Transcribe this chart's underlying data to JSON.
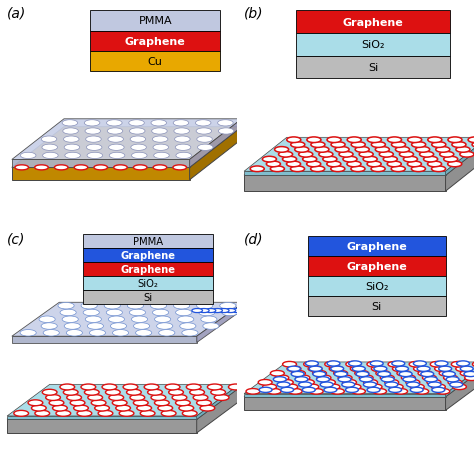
{
  "fig_width": 4.74,
  "fig_height": 4.52,
  "dpi": 100,
  "bg_color": "#ffffff",
  "label_fontsize": 10,
  "layer_label_fontsize": 8,
  "colors": {
    "pmma": "#c0c8e0",
    "graphene_red": "#dd1111",
    "graphene_blue": "#2255dd",
    "cu": "#e8a800",
    "sio2": "#aadde8",
    "si": "#bbbbbb",
    "sio2_side": "#80bece",
    "si_side": "#999999",
    "cu_side": "#c08800",
    "pmma_side": "#9098b8"
  },
  "stack_a": [
    {
      "label": "PMMA",
      "color": "#c0c8e0",
      "text_color": "black",
      "bold": false
    },
    {
      "label": "Graphene",
      "color": "#dd1111",
      "text_color": "white",
      "bold": true
    },
    {
      "label": "Cu",
      "color": "#e8a800",
      "text_color": "black",
      "bold": false
    }
  ],
  "stack_b": [
    {
      "label": "Graphene",
      "color": "#dd1111",
      "text_color": "white",
      "bold": true
    },
    {
      "label": "SiO₂",
      "color": "#aadde8",
      "text_color": "black",
      "bold": false
    },
    {
      "label": "Si",
      "color": "#bbbbbb",
      "text_color": "black",
      "bold": false
    }
  ],
  "stack_c": [
    {
      "label": "PMMA",
      "color": "#c0c8e0",
      "text_color": "black",
      "bold": false
    },
    {
      "label": "Graphene",
      "color": "#2255dd",
      "text_color": "white",
      "bold": true
    },
    {
      "label": "Graphene",
      "color": "#dd1111",
      "text_color": "white",
      "bold": true
    },
    {
      "label": "SiO₂",
      "color": "#aadde8",
      "text_color": "black",
      "bold": false
    },
    {
      "label": "Si",
      "color": "#bbbbbb",
      "text_color": "black",
      "bold": false
    }
  ],
  "stack_d": [
    {
      "label": "Graphene",
      "color": "#2255dd",
      "text_color": "white",
      "bold": true
    },
    {
      "label": "Graphene",
      "color": "#dd1111",
      "text_color": "white",
      "bold": true
    },
    {
      "label": "SiO₂",
      "color": "#aadde8",
      "text_color": "black",
      "bold": false
    },
    {
      "label": "Si",
      "color": "#bbbbbb",
      "text_color": "black",
      "bold": false
    }
  ]
}
